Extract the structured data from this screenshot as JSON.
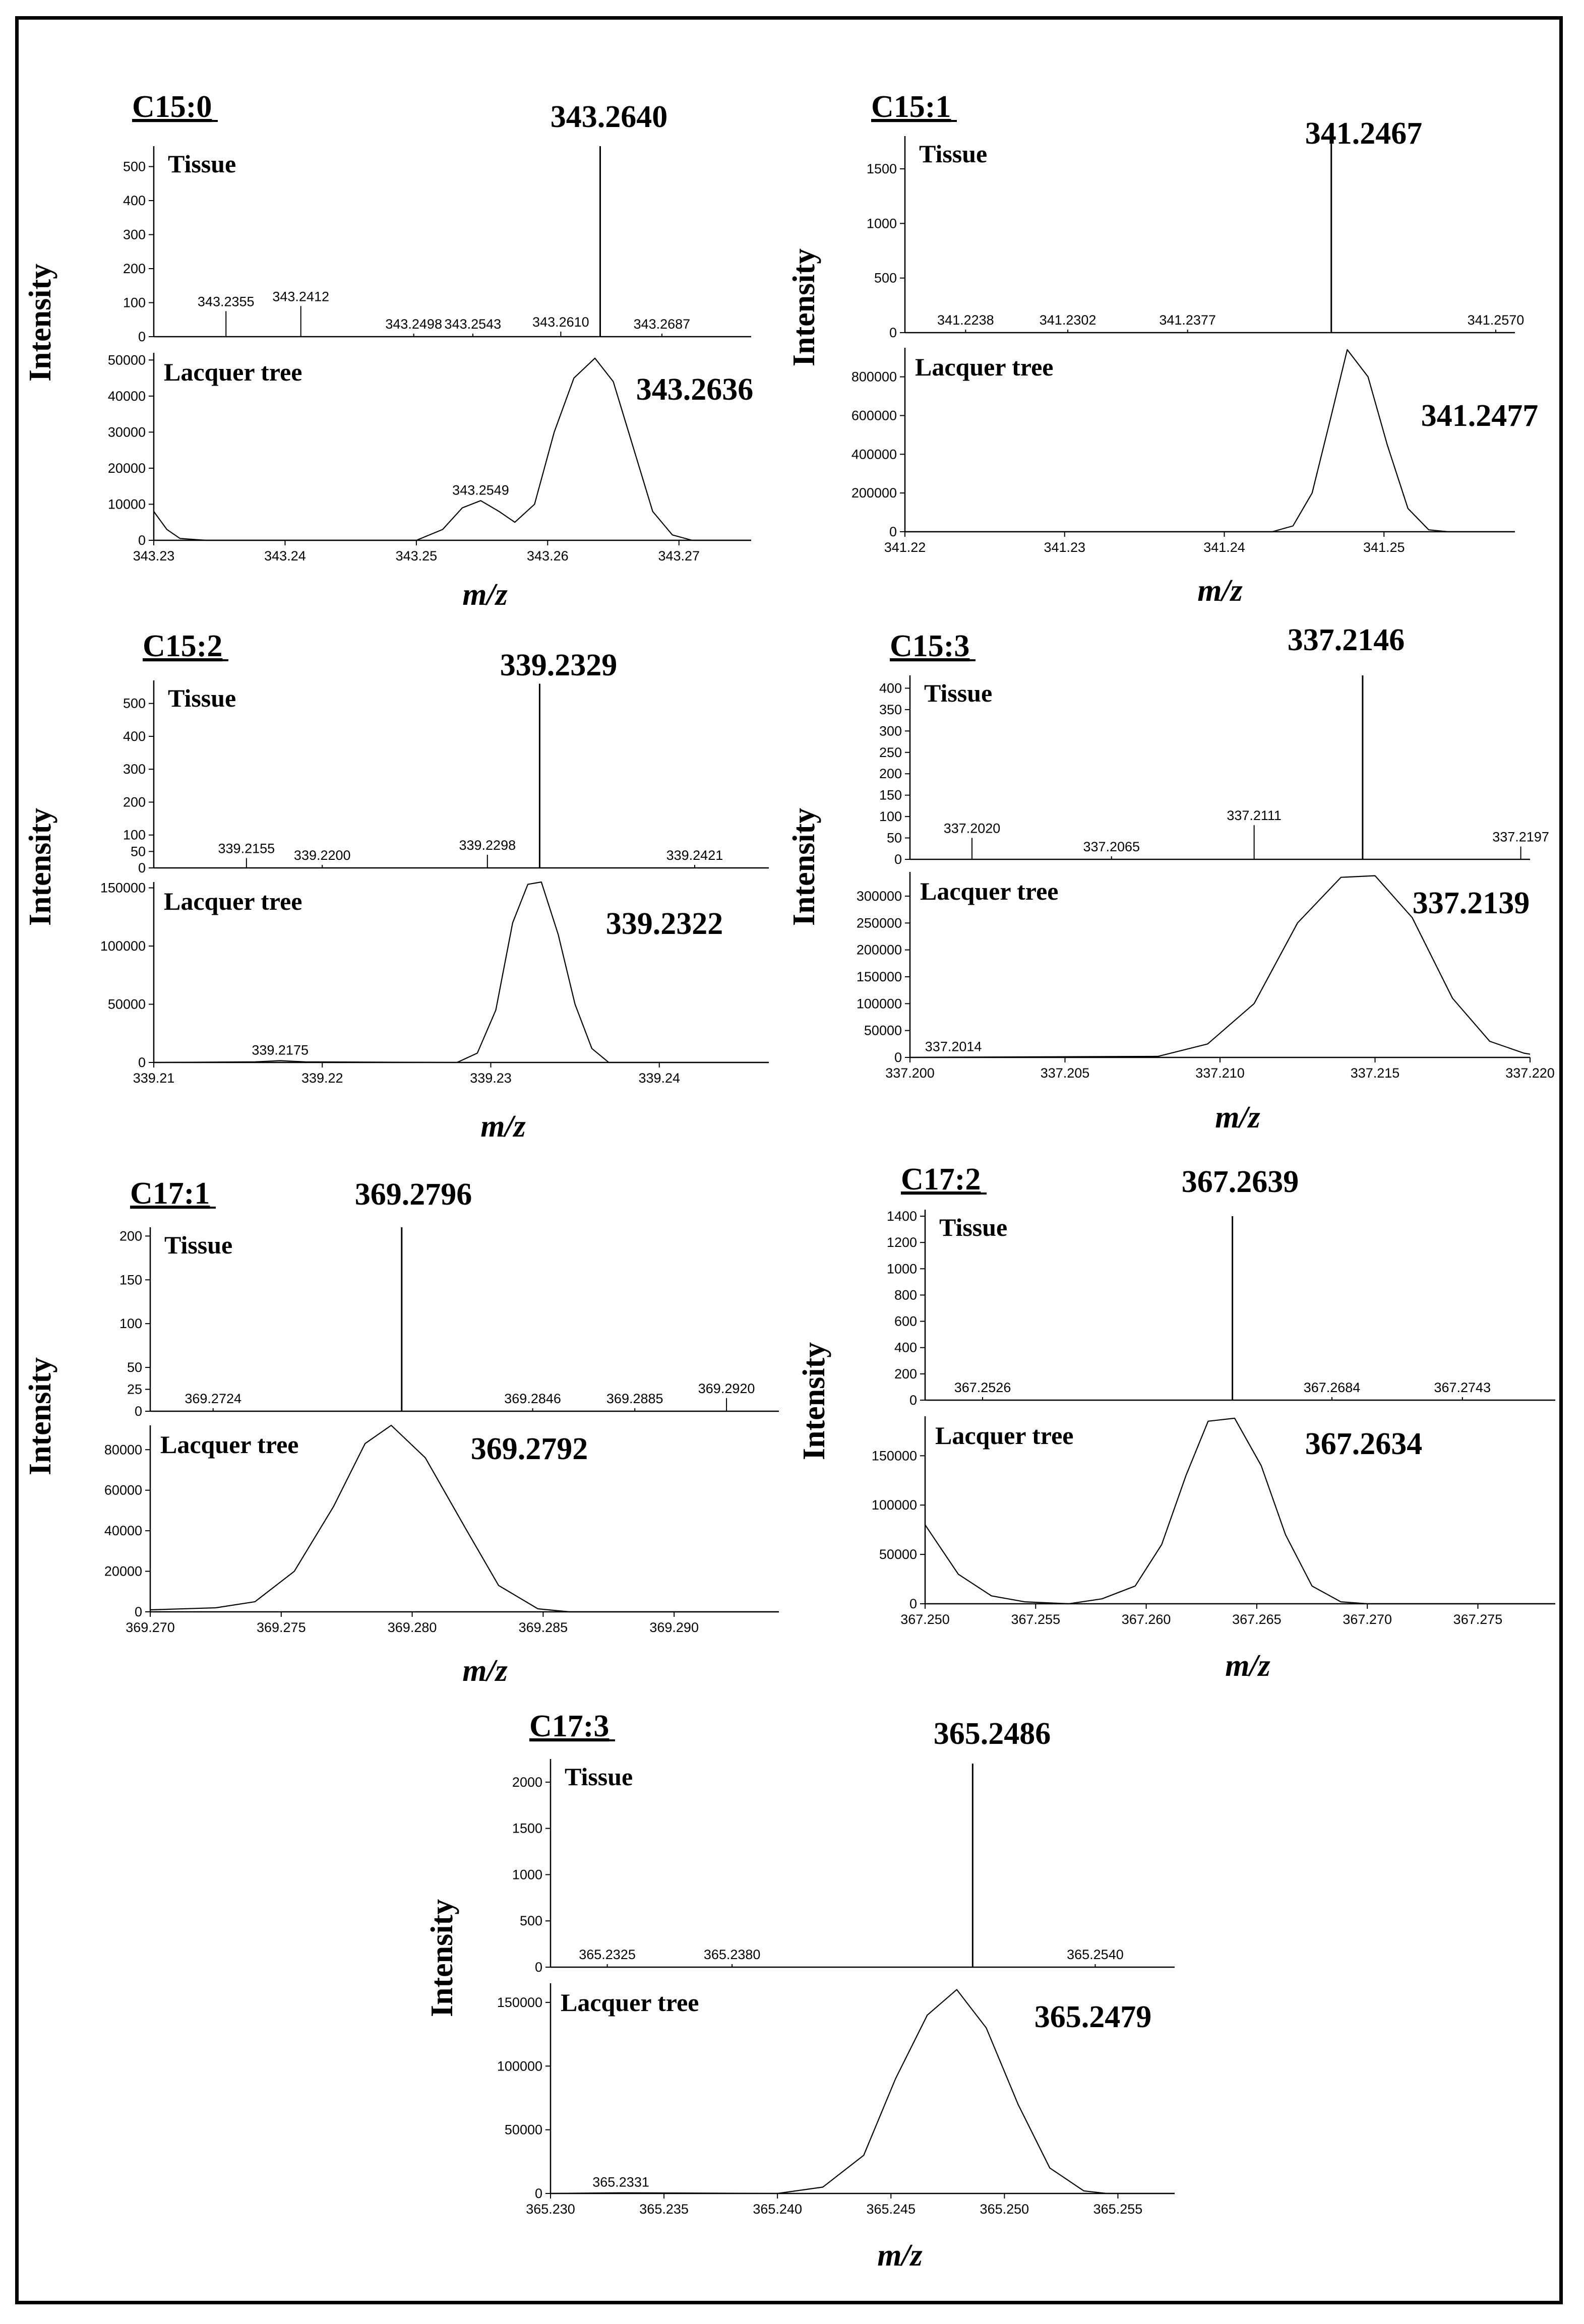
{
  "figure": {
    "y_axis_label": "Intensity",
    "x_axis_label": "m/z",
    "tissue_label": "Tissue",
    "lacquer_label": "Lacquer tree"
  },
  "chart_data": [
    {
      "type": "line",
      "compound": "C15:0",
      "tissue": {
        "main_peak_label": "343.2640",
        "main_peak": {
          "mz": 343.264,
          "intensity": 560
        },
        "ylim": [
          0,
          560
        ],
        "yticks": [
          0,
          100,
          200,
          300,
          400,
          500
        ],
        "sticks": [
          {
            "mz": 343.2355,
            "intensity": 75,
            "label": "343.2355"
          },
          {
            "mz": 343.2412,
            "intensity": 90,
            "label": "343.2412"
          },
          {
            "mz": 343.2498,
            "intensity": 5,
            "label": "343.2498"
          },
          {
            "mz": 343.2543,
            "intensity": 5,
            "label": "343.2543"
          },
          {
            "mz": 343.261,
            "intensity": 15,
            "label": "343.2610"
          },
          {
            "mz": 343.2687,
            "intensity": 5,
            "label": "343.2687"
          }
        ]
      },
      "lacquer": {
        "peak_label": "343.2636",
        "ylim": [
          0,
          52000
        ],
        "yticks": [
          0,
          10000,
          20000,
          30000,
          40000,
          50000
        ],
        "xlim": [
          343.23,
          343.2755
        ],
        "xticks": [
          "343.23",
          "343.24",
          "343.25",
          "343.26",
          "343.27"
        ],
        "xtick_values": [
          343.23,
          343.24,
          343.25,
          343.26,
          343.27
        ],
        "minor_peak_labels": [
          {
            "mz": 343.2549,
            "intensity": 11000,
            "label": "343.2549"
          }
        ],
        "profile": [
          [
            343.23,
            8000
          ],
          [
            343.231,
            3000
          ],
          [
            343.232,
            500
          ],
          [
            343.234,
            0
          ],
          [
            343.25,
            0
          ],
          [
            343.252,
            3000
          ],
          [
            343.2535,
            9000
          ],
          [
            343.2549,
            11000
          ],
          [
            343.2563,
            8000
          ],
          [
            343.2575,
            5000
          ],
          [
            343.259,
            10000
          ],
          [
            343.2605,
            30000
          ],
          [
            343.262,
            45000
          ],
          [
            343.2636,
            50500
          ],
          [
            343.265,
            44000
          ],
          [
            343.2665,
            26000
          ],
          [
            343.268,
            8000
          ],
          [
            343.2695,
            1500
          ],
          [
            343.271,
            0
          ],
          [
            343.2755,
            0
          ]
        ]
      }
    },
    {
      "type": "line",
      "compound": "C15:1",
      "tissue": {
        "main_peak_label": "341.2467",
        "main_peak": {
          "mz": 341.2467,
          "intensity": 1800
        },
        "ylim": [
          0,
          1800
        ],
        "yticks": [
          0,
          500,
          1000,
          1500
        ],
        "sticks": [
          {
            "mz": 341.2238,
            "intensity": 0,
            "label": "341.2238"
          },
          {
            "mz": 341.2302,
            "intensity": 10,
            "label": "341.2302"
          },
          {
            "mz": 341.2377,
            "intensity": 0,
            "label": "341.2377"
          },
          {
            "mz": 341.257,
            "intensity": 0,
            "label": "341.2570"
          }
        ]
      },
      "lacquer": {
        "peak_label": "341.2477",
        "ylim": [
          0,
          950000
        ],
        "yticks": [
          0,
          200000,
          400000,
          600000,
          800000
        ],
        "xlim": [
          341.22,
          341.2582
        ],
        "xticks": [
          "341.22",
          "341.23",
          "341.24",
          "341.25"
        ],
        "xtick_values": [
          341.22,
          341.23,
          341.24,
          341.25
        ],
        "minor_peak_labels": [],
        "profile": [
          [
            341.22,
            0
          ],
          [
            341.243,
            0
          ],
          [
            341.2443,
            30000
          ],
          [
            341.2455,
            200000
          ],
          [
            341.2467,
            600000
          ],
          [
            341.2477,
            940000
          ],
          [
            341.249,
            800000
          ],
          [
            341.2502,
            450000
          ],
          [
            341.2515,
            120000
          ],
          [
            341.2528,
            10000
          ],
          [
            341.254,
            0
          ],
          [
            341.2582,
            0
          ]
        ]
      }
    },
    {
      "type": "line",
      "compound": "C15:2",
      "tissue": {
        "main_peak_label": "339.2329",
        "main_peak": {
          "mz": 339.2329,
          "intensity": 560
        },
        "ylim": [
          0,
          570
        ],
        "yticks": [
          0,
          50,
          100,
          200,
          300,
          400,
          500
        ],
        "sticks": [
          {
            "mz": 339.2155,
            "intensity": 30,
            "label": "339.2155"
          },
          {
            "mz": 339.22,
            "intensity": 0,
            "label": "339.2200"
          },
          {
            "mz": 339.2298,
            "intensity": 40,
            "label": "339.2298"
          },
          {
            "mz": 339.2421,
            "intensity": 0,
            "label": "339.2421"
          }
        ]
      },
      "lacquer": {
        "peak_label": "339.2322",
        "ylim": [
          0,
          155000
        ],
        "yticks": [
          0,
          50000,
          100000,
          150000
        ],
        "xlim": [
          339.21,
          339.2465
        ],
        "xticks": [
          "339.21",
          "339.22",
          "339.23",
          "339.24"
        ],
        "xtick_values": [
          339.21,
          339.22,
          339.23,
          339.24
        ],
        "minor_peak_labels": [
          {
            "mz": 339.2175,
            "intensity": 1500,
            "label": "339.2175"
          }
        ],
        "profile": [
          [
            339.21,
            0
          ],
          [
            339.216,
            500
          ],
          [
            339.2175,
            1500
          ],
          [
            339.219,
            500
          ],
          [
            339.228,
            0
          ],
          [
            339.2292,
            8000
          ],
          [
            339.2303,
            45000
          ],
          [
            339.2313,
            120000
          ],
          [
            339.2322,
            153000
          ],
          [
            339.233,
            155000
          ],
          [
            339.234,
            110000
          ],
          [
            339.235,
            50000
          ],
          [
            339.236,
            12000
          ],
          [
            339.237,
            0
          ],
          [
            339.2465,
            0
          ]
        ]
      }
    },
    {
      "type": "line",
      "compound": "C15:3",
      "tissue": {
        "main_peak_label": "337.2146",
        "main_peak": {
          "mz": 337.2146,
          "intensity": 430
        },
        "ylim": [
          0,
          430
        ],
        "yticks": [
          0,
          50,
          100,
          150,
          200,
          250,
          300,
          350,
          400
        ],
        "sticks": [
          {
            "mz": 337.202,
            "intensity": 50,
            "label": "337.2020"
          },
          {
            "mz": 337.2065,
            "intensity": 5,
            "label": "337.2065"
          },
          {
            "mz": 337.2111,
            "intensity": 80,
            "label": "337.2111"
          },
          {
            "mz": 337.2197,
            "intensity": 30,
            "label": "337.2197"
          }
        ]
      },
      "lacquer": {
        "peak_label": "337.2139",
        "ylim": [
          0,
          345000
        ],
        "yticks": [
          0,
          50000,
          100000,
          150000,
          200000,
          250000,
          300000
        ],
        "xlim": [
          337.2,
          337.22
        ],
        "xticks": [
          "337.200",
          "337.205",
          "337.210",
          "337.215",
          "337.220"
        ],
        "xtick_values": [
          337.2,
          337.205,
          337.21,
          337.215,
          337.22
        ],
        "minor_peak_labels": [
          {
            "mz": 337.2014,
            "intensity": 500,
            "label": "337.2014"
          }
        ],
        "profile": [
          [
            337.2,
            0
          ],
          [
            337.2014,
            500
          ],
          [
            337.208,
            2000
          ],
          [
            337.2096,
            25000
          ],
          [
            337.2111,
            100000
          ],
          [
            337.2125,
            250000
          ],
          [
            337.2139,
            335000
          ],
          [
            337.215,
            338000
          ],
          [
            337.2162,
            260000
          ],
          [
            337.2175,
            110000
          ],
          [
            337.2187,
            30000
          ],
          [
            337.2198,
            8000
          ],
          [
            337.22,
            6000
          ]
        ]
      }
    },
    {
      "type": "line",
      "compound": "C17:1",
      "tissue": {
        "main_peak_label": "369.2796",
        "main_peak": {
          "mz": 369.2796,
          "intensity": 210
        },
        "ylim": [
          0,
          210
        ],
        "yticks": [
          0,
          25,
          50,
          100,
          150,
          200
        ],
        "sticks": [
          {
            "mz": 369.2724,
            "intensity": 0,
            "label": "369.2724"
          },
          {
            "mz": 369.2846,
            "intensity": 0,
            "label": "369.2846"
          },
          {
            "mz": 369.2885,
            "intensity": 0,
            "label": "369.2885"
          },
          {
            "mz": 369.292,
            "intensity": 15,
            "label": "369.2920"
          }
        ]
      },
      "lacquer": {
        "peak_label": "369.2792",
        "ylim": [
          0,
          92000
        ],
        "yticks": [
          0,
          20000,
          40000,
          60000,
          80000
        ],
        "xlim": [
          369.27,
          369.294
        ],
        "xticks": [
          "369.270",
          "369.275",
          "369.280",
          "369.285",
          "369.290"
        ],
        "xtick_values": [
          369.27,
          369.275,
          369.28,
          369.285,
          369.29
        ],
        "minor_peak_labels": [],
        "profile": [
          [
            369.27,
            1000
          ],
          [
            369.2725,
            2000
          ],
          [
            369.274,
            5000
          ],
          [
            369.2755,
            20000
          ],
          [
            369.277,
            52000
          ],
          [
            369.2782,
            83000
          ],
          [
            369.2792,
            92000
          ],
          [
            369.2805,
            76000
          ],
          [
            369.282,
            42000
          ],
          [
            369.2833,
            13000
          ],
          [
            369.2848,
            1500
          ],
          [
            369.286,
            0
          ],
          [
            369.294,
            0
          ]
        ]
      }
    },
    {
      "type": "line",
      "compound": "C17:2",
      "tissue": {
        "main_peak_label": "367.2639",
        "main_peak": {
          "mz": 367.2639,
          "intensity": 1400
        },
        "ylim": [
          0,
          1450
        ],
        "yticks": [
          0,
          200,
          400,
          600,
          800,
          1000,
          1200,
          1400
        ],
        "sticks": [
          {
            "mz": 367.2526,
            "intensity": 0,
            "label": "367.2526"
          },
          {
            "mz": 367.2684,
            "intensity": 0,
            "label": "367.2684"
          },
          {
            "mz": 367.2743,
            "intensity": 0,
            "label": "367.2743"
          }
        ]
      },
      "lacquer": {
        "peak_label": "367.2634",
        "ylim": [
          0,
          190000
        ],
        "yticks": [
          0,
          50000,
          100000,
          150000
        ],
        "xlim": [
          367.25,
          367.2785
        ],
        "xticks": [
          "367.250",
          "367.255",
          "367.260",
          "367.265",
          "367.270",
          "367.275"
        ],
        "xtick_values": [
          367.25,
          367.255,
          367.26,
          367.265,
          367.27,
          367.275
        ],
        "minor_peak_labels": [],
        "profile": [
          [
            367.25,
            80000
          ],
          [
            367.2515,
            30000
          ],
          [
            367.253,
            8000
          ],
          [
            367.2545,
            2000
          ],
          [
            367.2565,
            0
          ],
          [
            367.258,
            5000
          ],
          [
            367.2595,
            18000
          ],
          [
            367.2607,
            60000
          ],
          [
            367.2618,
            130000
          ],
          [
            367.2628,
            185000
          ],
          [
            367.264,
            188000
          ],
          [
            367.2652,
            140000
          ],
          [
            367.2663,
            70000
          ],
          [
            367.2675,
            18000
          ],
          [
            367.2688,
            2000
          ],
          [
            367.27,
            0
          ],
          [
            367.2785,
            0
          ]
        ]
      }
    },
    {
      "type": "line",
      "compound": "C17:3",
      "tissue": {
        "main_peak_label": "365.2486",
        "main_peak": {
          "mz": 365.2486,
          "intensity": 2200
        },
        "ylim": [
          0,
          2250
        ],
        "yticks": [
          0,
          500,
          1000,
          1500,
          2000
        ],
        "sticks": [
          {
            "mz": 365.2325,
            "intensity": 0,
            "label": "365.2325"
          },
          {
            "mz": 365.238,
            "intensity": 0,
            "label": "365.2380"
          },
          {
            "mz": 365.254,
            "intensity": 0,
            "label": "365.2540"
          }
        ]
      },
      "lacquer": {
        "peak_label": "365.2479",
        "ylim": [
          0,
          165000
        ],
        "yticks": [
          0,
          50000,
          100000,
          150000
        ],
        "xlim": [
          365.23,
          365.2575
        ],
        "xticks": [
          "365.230",
          "365.235",
          "365.240",
          "365.245",
          "365.250",
          "365.255"
        ],
        "xtick_values": [
          365.23,
          365.235,
          365.24,
          365.245,
          365.25,
          365.255
        ],
        "minor_peak_labels": [
          {
            "mz": 365.2331,
            "intensity": 500,
            "label": "365.2331"
          }
        ],
        "profile": [
          [
            365.23,
            0
          ],
          [
            365.2331,
            500
          ],
          [
            365.24,
            0
          ],
          [
            365.242,
            5000
          ],
          [
            365.2438,
            30000
          ],
          [
            365.2452,
            90000
          ],
          [
            365.2466,
            140000
          ],
          [
            365.2479,
            160000
          ],
          [
            365.2492,
            130000
          ],
          [
            365.2506,
            70000
          ],
          [
            365.252,
            20000
          ],
          [
            365.2535,
            2000
          ],
          [
            365.2545,
            0
          ],
          [
            365.2575,
            0
          ]
        ]
      }
    }
  ]
}
